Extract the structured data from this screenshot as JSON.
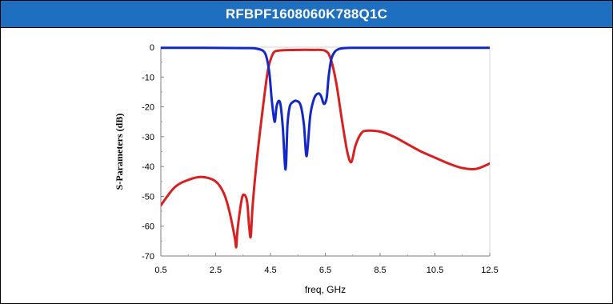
{
  "header": {
    "title": "RFBPF1608060K788Q1C"
  },
  "colors": {
    "header_bg": "#1f6fc0",
    "s21": "#d92020",
    "s11": "#1428c8"
  },
  "chart_data": {
    "type": "line",
    "xlabel": "freq, GHz",
    "ylabel": "S-Parameters (dB)",
    "xlim": [
      0.5,
      12.5
    ],
    "ylim": [
      -70,
      0
    ],
    "xticks": [
      "0.5",
      "2.5",
      "4.5",
      "6.5",
      "8.5",
      "10.5",
      "12.5"
    ],
    "yticks": [
      "0",
      "-10",
      "-20",
      "-30",
      "-40",
      "-50",
      "-60",
      "-70"
    ],
    "grid": false,
    "series": [
      {
        "color": "#d92020",
        "x": [
          0.5,
          1.0,
          1.5,
          2.0,
          2.5,
          2.8,
          3.0,
          3.2,
          3.25,
          3.3,
          3.45,
          3.55,
          3.65,
          3.72,
          3.78,
          3.85,
          4.0,
          4.2,
          4.4,
          4.55,
          4.65,
          4.75,
          5.0,
          5.5,
          6.0,
          6.5,
          6.7,
          6.9,
          7.1,
          7.3,
          7.45,
          7.6,
          7.8,
          8.0,
          8.5,
          9.0,
          9.5,
          10.0,
          10.5,
          11.0,
          11.5,
          12.0,
          12.5
        ],
        "y": [
          -53,
          -47,
          -44.5,
          -43.5,
          -45,
          -49,
          -55,
          -64,
          -67,
          -61,
          -51,
          -49.5,
          -52,
          -60,
          -63.5,
          -53,
          -38,
          -22,
          -8,
          -3,
          -1.5,
          -1.2,
          -1,
          -0.9,
          -0.9,
          -1.2,
          -4,
          -12,
          -24,
          -35,
          -38.5,
          -33,
          -29,
          -28,
          -28.3,
          -30,
          -32.5,
          -35,
          -37,
          -39,
          -40.5,
          -40.8,
          -39
        ]
      },
      {
        "color": "#1428c8",
        "x": [
          0.5,
          2.0,
          3.5,
          4.0,
          4.3,
          4.45,
          4.55,
          4.65,
          4.72,
          4.8,
          4.87,
          4.95,
          5.05,
          5.12,
          5.2,
          5.3,
          5.45,
          5.6,
          5.72,
          5.82,
          5.95,
          6.1,
          6.25,
          6.35,
          6.45,
          6.55,
          6.62,
          6.72,
          6.85,
          7.0,
          7.2,
          7.5,
          9.0,
          10.5,
          12.5
        ],
        "y": [
          -0.2,
          -0.2,
          -0.3,
          -0.5,
          -2,
          -8,
          -18,
          -25,
          -20,
          -18,
          -19.5,
          -27,
          -41,
          -26,
          -20,
          -18.5,
          -18,
          -19.5,
          -26,
          -36.5,
          -23,
          -17,
          -15.5,
          -16.5,
          -19,
          -17,
          -10,
          -4,
          -1.5,
          -0.6,
          -0.3,
          -0.2,
          -0.2,
          -0.2,
          -0.2
        ]
      }
    ]
  }
}
